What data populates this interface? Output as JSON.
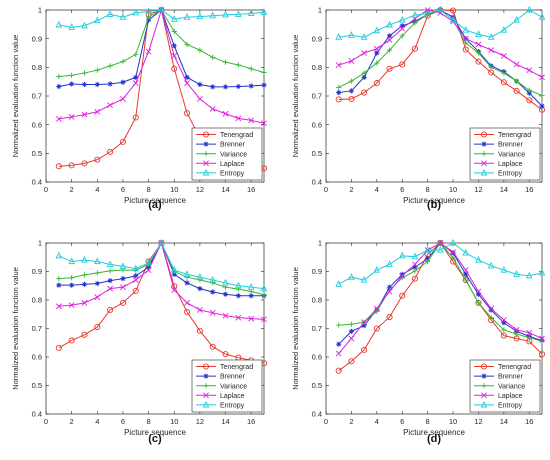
{
  "chart_data": [
    {
      "type": "line",
      "panel_label": "(a)",
      "xlabel": "Picture sequence",
      "ylabel": "Normalized evaluation function value",
      "xlim": [
        0,
        17
      ],
      "ylim": [
        0.4,
        1
      ],
      "xticks": [
        0,
        2,
        4,
        6,
        8,
        10,
        12,
        14,
        16
      ],
      "yticks": [
        0.4,
        0.5,
        0.6,
        0.7,
        0.8,
        0.9,
        1
      ],
      "ytick_labels": [
        "0.4",
        "0.5",
        "0.6",
        "0.7",
        "0.8",
        "0.9",
        "1"
      ],
      "legend_position": "bottom-right",
      "x": [
        1,
        2,
        3,
        4,
        5,
        6,
        7,
        8,
        9,
        10,
        11,
        12,
        13,
        14,
        15,
        16,
        17
      ],
      "series": [
        {
          "name": "Tenengrad",
          "color": "#e8392f",
          "marker": "circle",
          "values": [
            0.455,
            0.458,
            0.465,
            0.478,
            0.505,
            0.54,
            0.625,
            0.985,
            1.0,
            0.795,
            0.64,
            0.555,
            0.505,
            0.475,
            0.46,
            0.452,
            0.448
          ]
        },
        {
          "name": "Brenner",
          "color": "#2233cc",
          "marker": "star",
          "values": [
            0.733,
            0.742,
            0.74,
            0.74,
            0.742,
            0.748,
            0.765,
            0.965,
            1.0,
            0.875,
            0.765,
            0.74,
            0.732,
            0.732,
            0.733,
            0.735,
            0.738
          ]
        },
        {
          "name": "Variance",
          "color": "#33b833",
          "marker": "plus",
          "values": [
            0.768,
            0.772,
            0.78,
            0.79,
            0.805,
            0.82,
            0.845,
            0.975,
            1.0,
            0.925,
            0.88,
            0.86,
            0.835,
            0.818,
            0.808,
            0.795,
            0.782
          ]
        },
        {
          "name": "Laplace",
          "color": "#dd22dd",
          "marker": "x",
          "values": [
            0.62,
            0.627,
            0.635,
            0.645,
            0.668,
            0.69,
            0.745,
            0.855,
            1.0,
            0.84,
            0.745,
            0.69,
            0.655,
            0.638,
            0.622,
            0.615,
            0.605
          ]
        },
        {
          "name": "Entropy",
          "color": "#22ccdd",
          "marker": "triangle",
          "values": [
            0.948,
            0.94,
            0.945,
            0.963,
            0.985,
            0.975,
            0.99,
            0.995,
            1.0,
            0.968,
            0.975,
            0.977,
            0.98,
            0.983,
            0.985,
            0.988,
            0.992
          ]
        }
      ]
    },
    {
      "type": "line",
      "panel_label": "(b)",
      "xlabel": "Picture sequence",
      "ylabel": "Normalized evaluation function value",
      "xlim": [
        0,
        17
      ],
      "ylim": [
        0.4,
        1
      ],
      "xticks": [
        0,
        2,
        4,
        6,
        8,
        10,
        12,
        14,
        16
      ],
      "yticks": [
        0.4,
        0.5,
        0.6,
        0.7,
        0.8,
        0.9,
        1
      ],
      "ytick_labels": [
        "0.4",
        "0.5",
        "0.6",
        "0.7",
        "0.8",
        "0.9",
        "1"
      ],
      "legend_position": "bottom-right",
      "x": [
        1,
        2,
        3,
        4,
        5,
        6,
        7,
        8,
        9,
        10,
        11,
        12,
        13,
        14,
        15,
        16,
        17
      ],
      "series": [
        {
          "name": "Tenengrad",
          "color": "#e8392f",
          "marker": "circle",
          "values": [
            0.688,
            0.69,
            0.712,
            0.745,
            0.795,
            0.81,
            0.865,
            0.98,
            1.0,
            0.998,
            0.862,
            0.82,
            0.782,
            0.748,
            0.718,
            0.685,
            0.652
          ]
        },
        {
          "name": "Brenner",
          "color": "#2233cc",
          "marker": "star",
          "values": [
            0.712,
            0.718,
            0.765,
            0.85,
            0.91,
            0.945,
            0.96,
            0.985,
            1.0,
            0.975,
            0.9,
            0.855,
            0.805,
            0.785,
            0.752,
            0.71,
            0.665
          ]
        },
        {
          "name": "Variance",
          "color": "#33b833",
          "marker": "plus",
          "values": [
            0.73,
            0.752,
            0.78,
            0.815,
            0.86,
            0.91,
            0.955,
            0.985,
            1.0,
            0.965,
            0.885,
            0.85,
            0.8,
            0.78,
            0.752,
            0.72,
            0.702
          ]
        },
        {
          "name": "Laplace",
          "color": "#dd22dd",
          "marker": "x",
          "values": [
            0.808,
            0.822,
            0.85,
            0.865,
            0.895,
            0.935,
            0.97,
            1.0,
            0.99,
            0.96,
            0.9,
            0.88,
            0.86,
            0.84,
            0.81,
            0.79,
            0.765
          ]
        },
        {
          "name": "Entropy",
          "color": "#22ccdd",
          "marker": "triangle",
          "values": [
            0.905,
            0.912,
            0.905,
            0.928,
            0.948,
            0.965,
            0.982,
            0.988,
            1.0,
            0.965,
            0.93,
            0.915,
            0.905,
            0.93,
            0.965,
            1.0,
            0.975
          ]
        }
      ]
    },
    {
      "type": "line",
      "panel_label": "(c)",
      "xlabel": "Picture sequence",
      "ylabel": "Normalized evaluation function value",
      "xlim": [
        0,
        17
      ],
      "ylim": [
        0.4,
        1
      ],
      "xticks": [
        0,
        2,
        4,
        6,
        8,
        10,
        12,
        14,
        16
      ],
      "yticks": [
        0.4,
        0.5,
        0.6,
        0.7,
        0.8,
        0.9,
        1
      ],
      "ytick_labels": [
        "0.4",
        "0.5",
        "0.6",
        "0.7",
        "0.8",
        "0.9",
        "1"
      ],
      "legend_position": "bottom-right",
      "x": [
        1,
        2,
        3,
        4,
        5,
        6,
        7,
        8,
        9,
        10,
        11,
        12,
        13,
        14,
        15,
        16,
        17
      ],
      "series": [
        {
          "name": "Tenengrad",
          "color": "#e8392f",
          "marker": "circle",
          "values": [
            0.632,
            0.658,
            0.678,
            0.705,
            0.765,
            0.79,
            0.832,
            0.935,
            1.0,
            0.848,
            0.758,
            0.692,
            0.636,
            0.61,
            0.598,
            0.588,
            0.578
          ]
        },
        {
          "name": "Brenner",
          "color": "#2233cc",
          "marker": "star",
          "values": [
            0.852,
            0.852,
            0.855,
            0.858,
            0.868,
            0.875,
            0.885,
            0.915,
            1.0,
            0.89,
            0.86,
            0.84,
            0.828,
            0.82,
            0.815,
            0.815,
            0.815
          ]
        },
        {
          "name": "Variance",
          "color": "#33b833",
          "marker": "plus",
          "values": [
            0.875,
            0.878,
            0.888,
            0.895,
            0.902,
            0.905,
            0.905,
            0.925,
            1.0,
            0.9,
            0.88,
            0.87,
            0.86,
            0.845,
            0.838,
            0.83,
            0.818
          ]
        },
        {
          "name": "Laplace",
          "color": "#dd22dd",
          "marker": "x",
          "values": [
            0.778,
            0.782,
            0.79,
            0.81,
            0.84,
            0.845,
            0.87,
            0.905,
            1.0,
            0.835,
            0.79,
            0.765,
            0.755,
            0.745,
            0.738,
            0.735,
            0.732
          ]
        },
        {
          "name": "Entropy",
          "color": "#22ccdd",
          "marker": "triangle",
          "values": [
            0.955,
            0.935,
            0.94,
            0.935,
            0.925,
            0.918,
            0.91,
            0.93,
            1.0,
            0.905,
            0.89,
            0.88,
            0.87,
            0.86,
            0.85,
            0.845,
            0.84
          ]
        }
      ]
    },
    {
      "type": "line",
      "panel_label": "(d)",
      "xlabel": "Picture sequence",
      "ylabel": "Normalized evaluation function value",
      "xlim": [
        0,
        17
      ],
      "ylim": [
        0.4,
        1
      ],
      "xticks": [
        0,
        2,
        4,
        6,
        8,
        10,
        12,
        14,
        16
      ],
      "yticks": [
        0.4,
        0.5,
        0.6,
        0.7,
        0.8,
        0.9,
        1
      ],
      "ytick_labels": [
        "0.4",
        "0.5",
        "0.6",
        "0.7",
        "0.8",
        "0.9",
        "1"
      ],
      "legend_position": "bottom-right",
      "x": [
        1,
        2,
        3,
        4,
        5,
        6,
        7,
        8,
        9,
        10,
        11,
        12,
        13,
        14,
        15,
        16,
        17
      ],
      "series": [
        {
          "name": "Tenengrad",
          "color": "#e8392f",
          "marker": "circle",
          "values": [
            0.552,
            0.585,
            0.625,
            0.7,
            0.74,
            0.815,
            0.875,
            0.96,
            1.0,
            0.935,
            0.87,
            0.79,
            0.73,
            0.675,
            0.665,
            0.655,
            0.61
          ]
        },
        {
          "name": "Brenner",
          "color": "#2233cc",
          "marker": "star",
          "values": [
            0.645,
            0.69,
            0.71,
            0.765,
            0.845,
            0.89,
            0.915,
            0.945,
            1.0,
            0.965,
            0.89,
            0.82,
            0.765,
            0.72,
            0.69,
            0.672,
            0.658
          ]
        },
        {
          "name": "Variance",
          "color": "#33b833",
          "marker": "plus",
          "values": [
            0.712,
            0.715,
            0.722,
            0.76,
            0.835,
            0.878,
            0.902,
            0.935,
            1.0,
            0.948,
            0.87,
            0.79,
            0.738,
            0.695,
            0.68,
            0.668,
            0.655
          ]
        },
        {
          "name": "Laplace",
          "color": "#dd22dd",
          "marker": "x",
          "values": [
            0.612,
            0.665,
            0.722,
            0.77,
            0.83,
            0.885,
            0.925,
            0.975,
            1.0,
            0.968,
            0.905,
            0.83,
            0.77,
            0.73,
            0.695,
            0.685,
            0.665
          ]
        },
        {
          "name": "Entropy",
          "color": "#22ccdd",
          "marker": "triangle",
          "values": [
            0.855,
            0.88,
            0.87,
            0.905,
            0.925,
            0.955,
            0.952,
            0.975,
            0.975,
            1.0,
            0.965,
            0.94,
            0.92,
            0.905,
            0.89,
            0.885,
            0.895
          ]
        }
      ]
    }
  ]
}
